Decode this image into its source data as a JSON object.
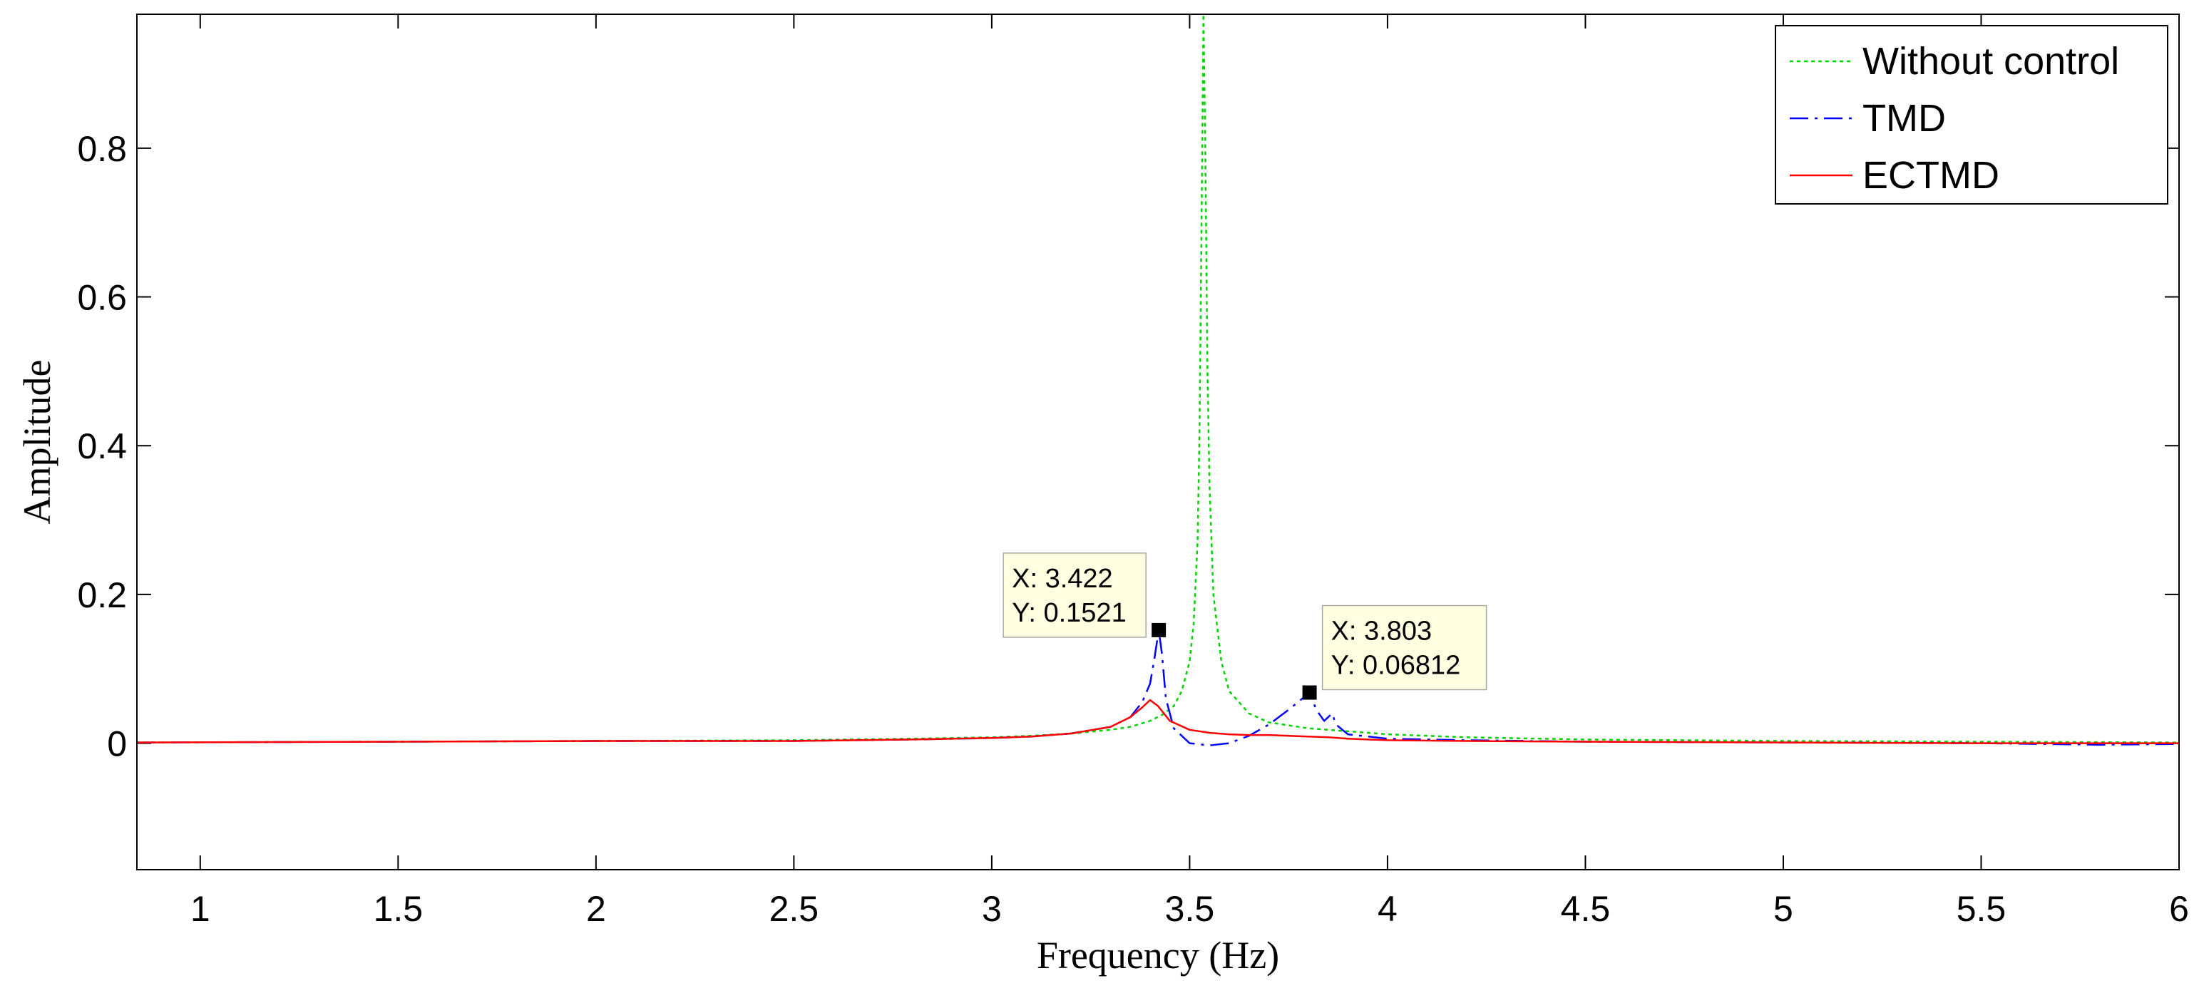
{
  "chart_data": {
    "type": "line",
    "xlabel": "Frequency (Hz)",
    "ylabel": "Amplitude",
    "xlim": [
      0.84,
      6.0
    ],
    "ylim": [
      -0.17,
      0.98
    ],
    "xticks": [
      1,
      1.5,
      2,
      2.5,
      3,
      3.5,
      4,
      4.5,
      5,
      5.5,
      6
    ],
    "xtick_labels": [
      "1",
      "1.5",
      "2",
      "2.5",
      "3",
      "3.5",
      "4",
      "4.5",
      "5",
      "5.5",
      "6"
    ],
    "yticks": [
      0,
      0.2,
      0.4,
      0.6,
      0.8
    ],
    "ytick_labels": [
      "0",
      "0.2",
      "0.4",
      "0.6",
      "0.8"
    ],
    "legend_position": "top-right",
    "series": [
      {
        "name": "Without control",
        "color": "#00d400",
        "style": "dotted",
        "x": [
          0.84,
          1.5,
          2.0,
          2.5,
          2.8,
          3.0,
          3.1,
          3.2,
          3.3,
          3.35,
          3.4,
          3.43,
          3.46,
          3.48,
          3.5,
          3.51,
          3.52,
          3.525,
          3.53,
          3.535,
          3.54,
          3.545,
          3.55,
          3.56,
          3.58,
          3.6,
          3.65,
          3.7,
          3.8,
          3.9,
          4.0,
          4.2,
          4.5,
          5.0,
          5.5,
          6.0
        ],
        "y": [
          0.001,
          0.002,
          0.003,
          0.004,
          0.006,
          0.008,
          0.01,
          0.013,
          0.018,
          0.022,
          0.03,
          0.038,
          0.05,
          0.07,
          0.11,
          0.16,
          0.27,
          0.42,
          0.7,
          0.98,
          0.78,
          0.5,
          0.35,
          0.2,
          0.11,
          0.07,
          0.04,
          0.028,
          0.02,
          0.016,
          0.012,
          0.008,
          0.005,
          0.003,
          0.002,
          0.001
        ]
      },
      {
        "name": "TMD",
        "color": "#0000ff",
        "style": "dashdot",
        "x": [
          0.84,
          1.5,
          2.0,
          2.5,
          2.8,
          3.0,
          3.1,
          3.2,
          3.3,
          3.35,
          3.38,
          3.4,
          3.41,
          3.422,
          3.43,
          3.44,
          3.46,
          3.5,
          3.55,
          3.6,
          3.65,
          3.7,
          3.75,
          3.78,
          3.803,
          3.82,
          3.84,
          3.86,
          3.87,
          3.9,
          4.0,
          4.2,
          4.5,
          5.0,
          5.5,
          5.8,
          6.0
        ],
        "y": [
          0.001,
          0.002,
          0.003,
          0.003,
          0.005,
          0.007,
          0.009,
          0.013,
          0.022,
          0.035,
          0.055,
          0.08,
          0.11,
          0.1521,
          0.12,
          0.06,
          0.02,
          0.0,
          -0.003,
          0.0,
          0.01,
          0.025,
          0.045,
          0.058,
          0.06812,
          0.045,
          0.03,
          0.04,
          0.025,
          0.012,
          0.006,
          0.004,
          0.002,
          0.001,
          0.0,
          -0.002,
          -0.001
        ]
      },
      {
        "name": "ECTMD",
        "color": "#ff0000",
        "style": "solid",
        "x": [
          0.84,
          1.5,
          2.0,
          2.5,
          2.8,
          3.0,
          3.1,
          3.2,
          3.3,
          3.35,
          3.38,
          3.4,
          3.42,
          3.45,
          3.5,
          3.55,
          3.6,
          3.65,
          3.7,
          3.75,
          3.8,
          3.85,
          3.9,
          4.0,
          4.2,
          4.5,
          5.0,
          5.5,
          6.0
        ],
        "y": [
          0.001,
          0.002,
          0.003,
          0.003,
          0.005,
          0.007,
          0.009,
          0.013,
          0.022,
          0.035,
          0.048,
          0.058,
          0.05,
          0.03,
          0.018,
          0.014,
          0.012,
          0.011,
          0.011,
          0.01,
          0.009,
          0.008,
          0.006,
          0.004,
          0.003,
          0.002,
          0.001,
          0.0,
          0.0
        ]
      }
    ],
    "annotations": [
      {
        "x": 3.422,
        "y": 0.1521,
        "line1": "X: 3.422",
        "line2": "Y: 0.1521",
        "box_side": "left"
      },
      {
        "x": 3.803,
        "y": 0.06812,
        "line1": "X: 3.803",
        "line2": "Y: 0.06812",
        "box_side": "right"
      }
    ]
  }
}
